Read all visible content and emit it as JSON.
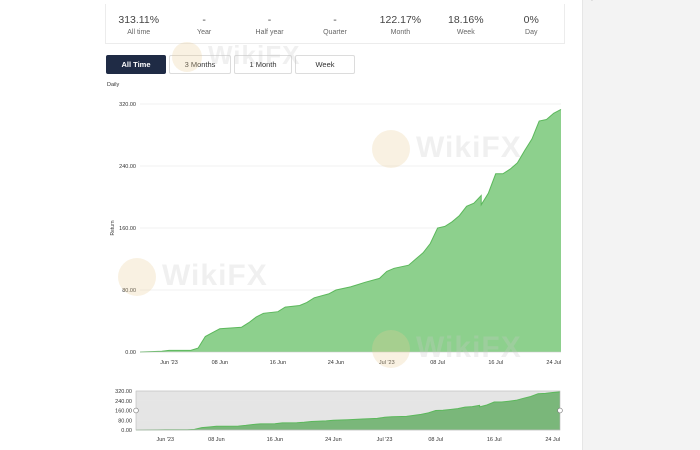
{
  "stats": [
    {
      "value": "313.11%",
      "label": "All time"
    },
    {
      "value": "-",
      "label": "Year"
    },
    {
      "value": "-",
      "label": "Half year"
    },
    {
      "value": "-",
      "label": "Quarter"
    },
    {
      "value": "122.17%",
      "label": "Month"
    },
    {
      "value": "18.16%",
      "label": "Week"
    },
    {
      "value": "0%",
      "label": "Day"
    }
  ],
  "periods": {
    "all_time": "All Time",
    "three_months": "3 Months",
    "one_month": "1 Month",
    "week": "Week",
    "selected": "All Time"
  },
  "chart_caption": "Daily",
  "watermark": "WikiFX",
  "side_mark": "’",
  "colors": {
    "area_fill": "#8dd08d",
    "area_line": "#5cb85c",
    "active_button": "#1f2b45",
    "navigator_fill": "#7ab77a"
  },
  "chart_data": [
    {
      "type": "area",
      "ylabel": "Return",
      "ylim": [
        0,
        320
      ],
      "yticks": [
        "0.00",
        "80.00",
        "160.00",
        "240.00",
        "320.00"
      ],
      "xticks": [
        "Jun '23",
        "08 Jun",
        "16 Jun",
        "24 Jun",
        "Jul '23",
        "08 Jul",
        "16 Jul",
        "24 Jul"
      ],
      "xrange": [
        "2023-05-28",
        "2023-07-25"
      ],
      "grid": true,
      "series": [
        {
          "values": [
            [
              "2023-05-28",
              0
            ],
            [
              "2023-05-31",
              1
            ],
            [
              "2023-06-01",
              2
            ],
            [
              "2023-06-04",
              2
            ],
            [
              "2023-06-05",
              5
            ],
            [
              "2023-06-06",
              20
            ],
            [
              "2023-06-07",
              25
            ],
            [
              "2023-06-08",
              30
            ],
            [
              "2023-06-11",
              32
            ],
            [
              "2023-06-12",
              38
            ],
            [
              "2023-06-13",
              45
            ],
            [
              "2023-06-14",
              50
            ],
            [
              "2023-06-16",
              52
            ],
            [
              "2023-06-17",
              58
            ],
            [
              "2023-06-19",
              60
            ],
            [
              "2023-06-20",
              64
            ],
            [
              "2023-06-21",
              70
            ],
            [
              "2023-06-23",
              75
            ],
            [
              "2023-06-24",
              80
            ],
            [
              "2023-06-26",
              84
            ],
            [
              "2023-06-27",
              87
            ],
            [
              "2023-06-28",
              90
            ],
            [
              "2023-06-30",
              95
            ],
            [
              "2023-07-01",
              104
            ],
            [
              "2023-07-02",
              108
            ],
            [
              "2023-07-04",
              112
            ],
            [
              "2023-07-05",
              120
            ],
            [
              "2023-07-06",
              128
            ],
            [
              "2023-07-07",
              140
            ],
            [
              "2023-07-08",
              160
            ],
            [
              "2023-07-09",
              162
            ],
            [
              "2023-07-10",
              168
            ],
            [
              "2023-07-11",
              176
            ],
            [
              "2023-07-12",
              188
            ],
            [
              "2023-07-13",
              192
            ],
            [
              "2023-07-14",
              202
            ],
            [
              "2023-07-14",
              190
            ],
            [
              "2023-07-15",
              205
            ],
            [
              "2023-07-16",
              230
            ],
            [
              "2023-07-17",
              230
            ],
            [
              "2023-07-18",
              236
            ],
            [
              "2023-07-19",
              244
            ],
            [
              "2023-07-20",
              260
            ],
            [
              "2023-07-21",
              275
            ],
            [
              "2023-07-22",
              298
            ],
            [
              "2023-07-23",
              300
            ],
            [
              "2023-07-24",
              308
            ],
            [
              "2023-07-25",
              313
            ]
          ]
        }
      ]
    },
    {
      "type": "area",
      "ylim": [
        0,
        320
      ],
      "yticks": [
        "0.00",
        "80.00",
        "160.00",
        "240.00",
        "320.00"
      ],
      "xticks": [
        "Jun '23",
        "08 Jun",
        "16 Jun",
        "24 Jun",
        "Jul '23",
        "08 Jul",
        "16 Jul",
        "24 Jul"
      ],
      "grid": true
    }
  ]
}
